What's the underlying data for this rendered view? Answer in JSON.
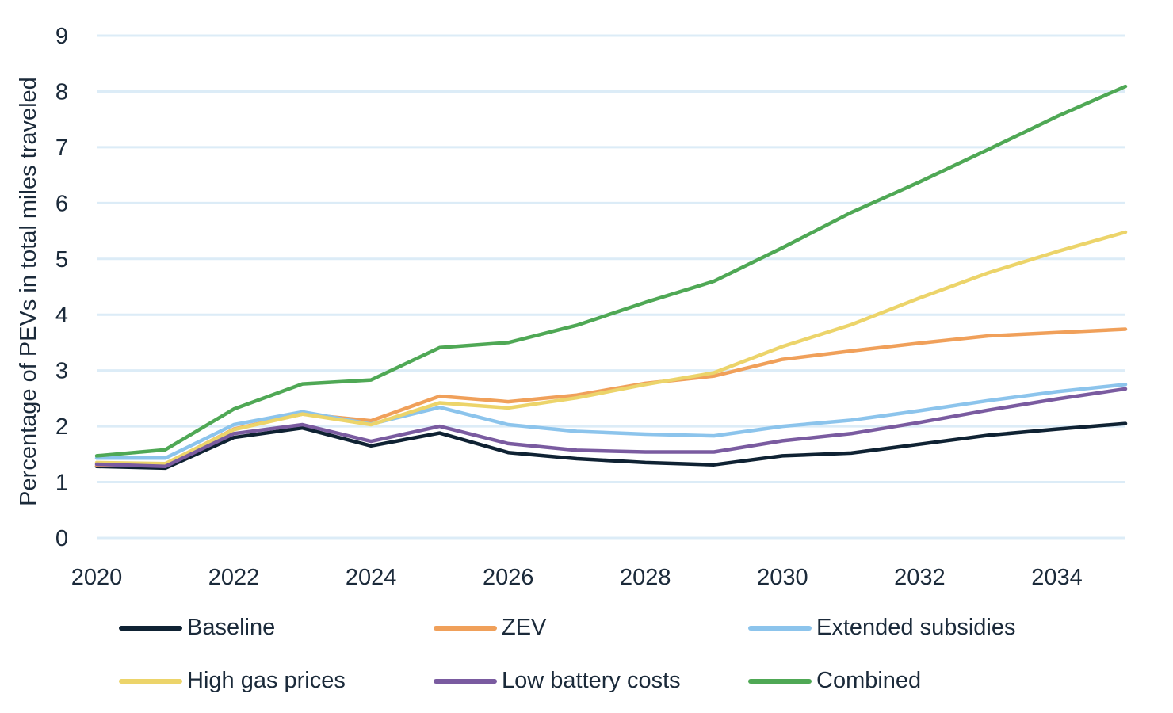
{
  "chart_data": {
    "type": "line",
    "xlabel": "",
    "ylabel": "Percentage of PEVs in total miles traveled",
    "xlim": [
      2020,
      2035
    ],
    "ylim": [
      0,
      9
    ],
    "x": [
      2020,
      2021,
      2022,
      2023,
      2024,
      2025,
      2026,
      2027,
      2028,
      2029,
      2030,
      2031,
      2032,
      2033,
      2034,
      2035
    ],
    "x_ticks": [
      "2020",
      "2022",
      "2024",
      "2026",
      "2028",
      "2030",
      "2032",
      "2034"
    ],
    "y_ticks": [
      "0",
      "1",
      "2",
      "3",
      "4",
      "5",
      "6",
      "7",
      "8",
      "9"
    ],
    "grid": "horizontal",
    "legend_position": "bottom",
    "series": [
      {
        "name": "Baseline",
        "color": "#0f2233",
        "values": [
          1.28,
          1.25,
          1.8,
          1.97,
          1.65,
          1.88,
          1.53,
          1.42,
          1.35,
          1.31,
          1.47,
          1.52,
          1.68,
          1.84,
          1.95,
          2.05
        ]
      },
      {
        "name": "ZEV",
        "color": "#f0a05a",
        "values": [
          1.3,
          1.32,
          1.95,
          2.22,
          2.1,
          2.54,
          2.44,
          2.56,
          2.77,
          2.9,
          3.2,
          3.35,
          3.49,
          3.62,
          3.68,
          3.74
        ]
      },
      {
        "name": "Extended subsidies",
        "color": "#8cc4ec",
        "values": [
          1.43,
          1.43,
          2.03,
          2.26,
          2.04,
          2.34,
          2.03,
          1.91,
          1.86,
          1.83,
          2.0,
          2.11,
          2.28,
          2.46,
          2.62,
          2.75
        ]
      },
      {
        "name": "High gas prices",
        "color": "#ecd46a",
        "values": [
          1.35,
          1.33,
          1.94,
          2.22,
          2.03,
          2.42,
          2.33,
          2.51,
          2.75,
          2.96,
          3.43,
          3.82,
          4.3,
          4.75,
          5.13,
          5.48
        ]
      },
      {
        "name": "Low battery costs",
        "color": "#7a5ba0",
        "values": [
          1.32,
          1.28,
          1.87,
          2.03,
          1.73,
          2.0,
          1.69,
          1.57,
          1.54,
          1.54,
          1.74,
          1.87,
          2.07,
          2.29,
          2.49,
          2.67
        ]
      },
      {
        "name": "Combined",
        "color": "#4fa855",
        "values": [
          1.47,
          1.58,
          2.31,
          2.76,
          2.83,
          3.41,
          3.5,
          3.81,
          4.22,
          4.6,
          5.2,
          5.83,
          6.38,
          6.96,
          7.55,
          8.09
        ]
      }
    ]
  },
  "style": {
    "grid_color": "#dcecf7",
    "text_color": "#1b2a3a"
  }
}
